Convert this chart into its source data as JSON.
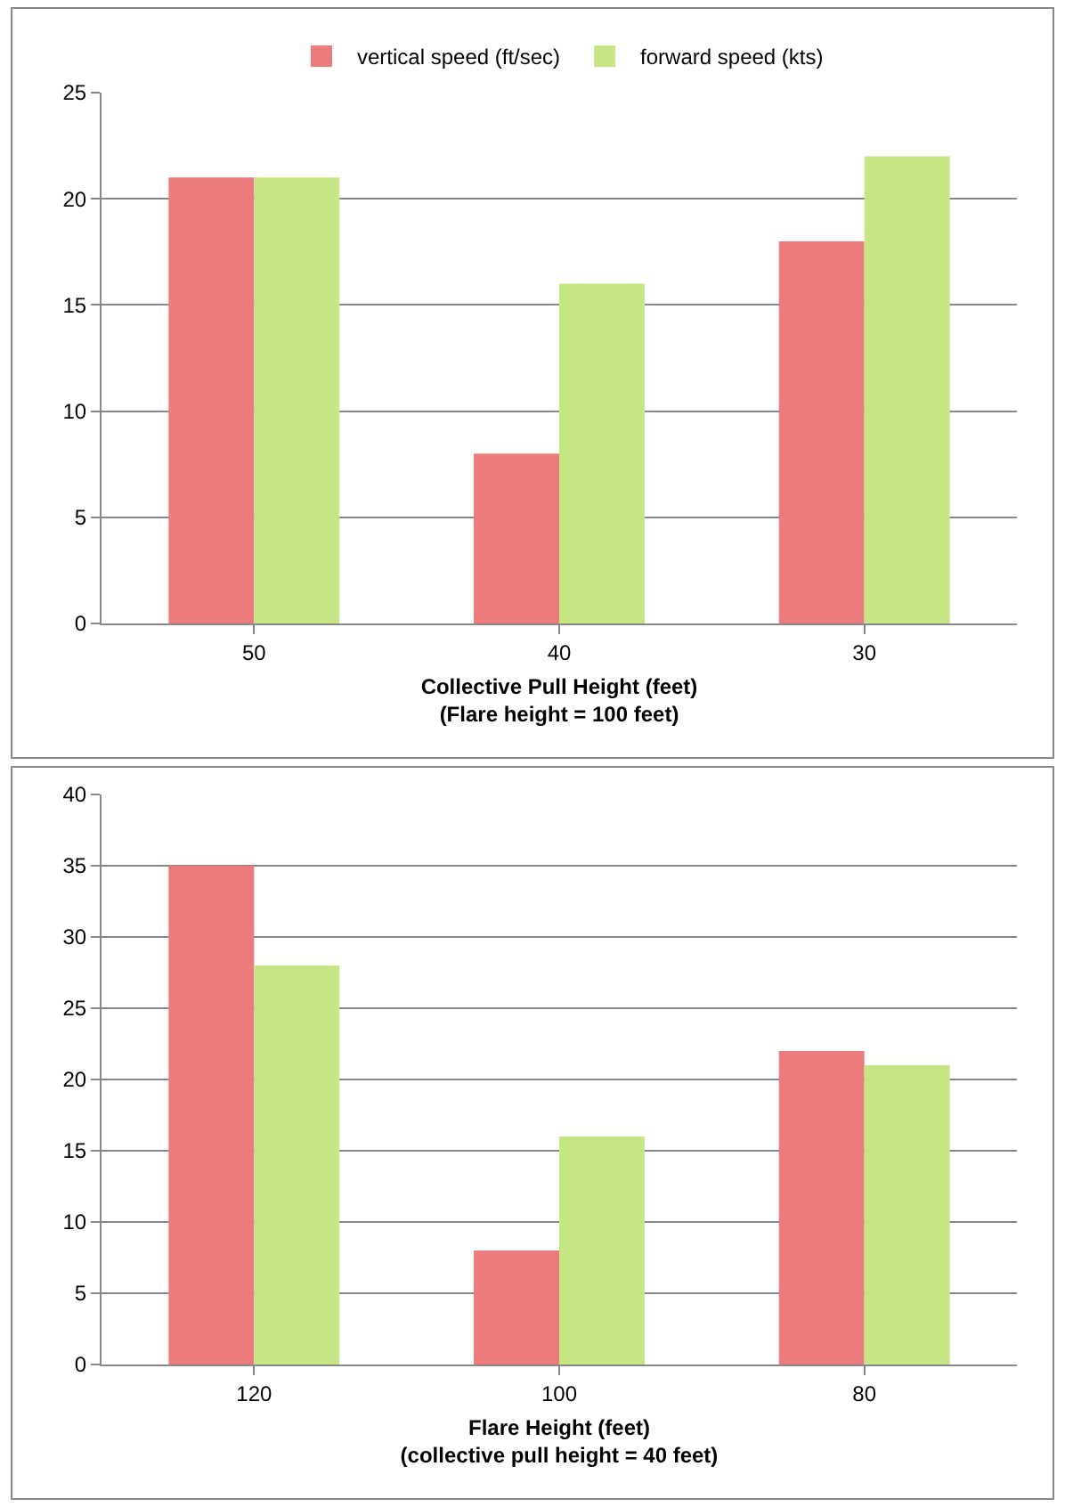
{
  "chart_data": [
    {
      "type": "bar",
      "categories": [
        "50",
        "40",
        "30"
      ],
      "xlabel": "Collective Pull Height (feet)\n(Flare height = 100 feet)",
      "ylim": [
        0,
        25
      ],
      "yticks": [
        0,
        5,
        10,
        15,
        20,
        25
      ],
      "grid": "y",
      "legend": "top",
      "series": [
        {
          "name": "vertical speed (ft/sec)",
          "color": "#ec7b7d",
          "values": [
            21,
            8,
            18
          ]
        },
        {
          "name": "forward speed (kts)",
          "color": "#c6e685",
          "values": [
            21,
            16,
            22
          ]
        }
      ]
    },
    {
      "type": "bar",
      "categories": [
        "120",
        "100",
        "80"
      ],
      "xlabel": "Flare Height (feet)\n(collective pull height = 40 feet)",
      "ylim": [
        0,
        40
      ],
      "yticks": [
        0,
        5,
        10,
        15,
        20,
        25,
        30,
        35,
        40
      ],
      "grid": "y",
      "series": [
        {
          "color": "#ec7b7d",
          "values": [
            35,
            8,
            22
          ]
        },
        {
          "color": "#c6e685",
          "values": [
            28,
            16,
            21
          ]
        }
      ]
    }
  ]
}
